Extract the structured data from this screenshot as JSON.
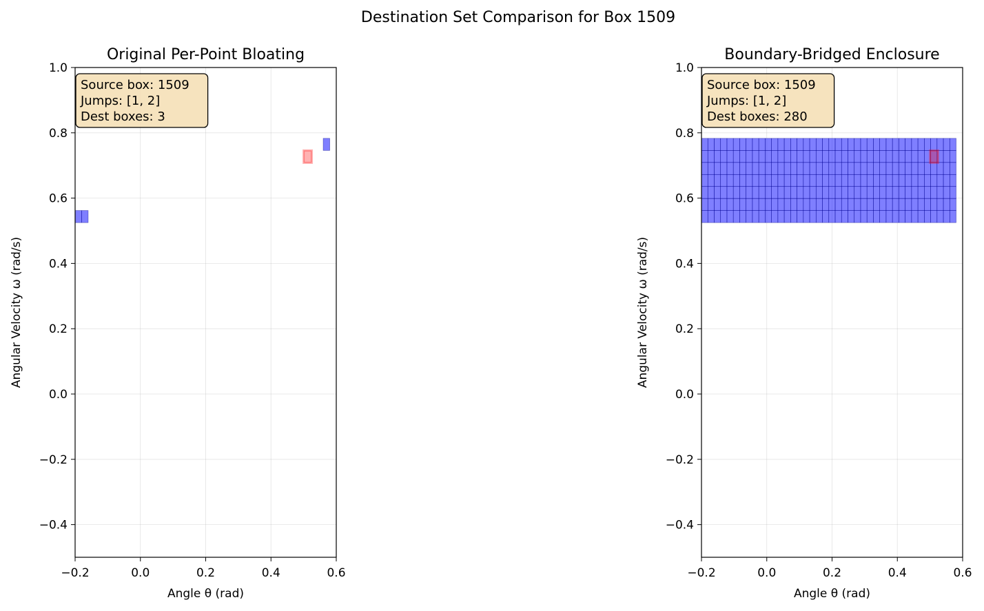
{
  "figure": {
    "suptitle": "Destination Set Comparison for Box 1509"
  },
  "colors": {
    "dest_fill": "#0000ff",
    "dest_edge": "#00008b",
    "source_fill": "#ff0000",
    "source_edge": "#ff0000",
    "info_bg": "#f5deb3",
    "grid": "#b0b0b0"
  },
  "chart_data": [
    {
      "type": "scatter",
      "title": "Original Per-Point Bloating",
      "xlabel": "Angle θ (rad)",
      "ylabel": "Angular Velocity ω (rad/s)",
      "xlim": [
        -0.2,
        0.6
      ],
      "ylim": [
        -0.5,
        1.0
      ],
      "xticks": [
        "−0.2",
        "0.0",
        "0.2",
        "0.4",
        "0.6"
      ],
      "yticks": [
        "−0.4",
        "−0.2",
        "0.0",
        "0.2",
        "0.4",
        "0.6",
        "0.8",
        "1.0"
      ],
      "grid": true,
      "info": [
        "Source box: 1509",
        "Jumps: [1, 2]",
        "Dest boxes: 3"
      ],
      "source_box": {
        "x0": 0.5,
        "x1": 0.525,
        "y0": 0.708,
        "y1": 0.746
      },
      "dest_boxes": [
        {
          "x0": -0.2,
          "x1": -0.18,
          "y0": 0.525,
          "y1": 0.562
        },
        {
          "x0": -0.18,
          "x1": -0.16,
          "y0": 0.525,
          "y1": 0.562
        },
        {
          "x0": 0.56,
          "x1": 0.58,
          "y0": 0.746,
          "y1": 0.783
        }
      ]
    },
    {
      "type": "scatter",
      "title": "Boundary-Bridged Enclosure",
      "xlabel": "Angle θ (rad)",
      "ylabel": "Angular Velocity ω (rad/s)",
      "xlim": [
        -0.2,
        0.6
      ],
      "ylim": [
        -0.5,
        1.0
      ],
      "xticks": [
        "−0.2",
        "0.0",
        "0.2",
        "0.4",
        "0.6"
      ],
      "yticks": [
        "−0.4",
        "−0.2",
        "0.0",
        "0.2",
        "0.4",
        "0.6",
        "0.8",
        "1.0"
      ],
      "grid": true,
      "info": [
        "Source box: 1509",
        "Jumps: [1, 2]",
        "Dest boxes: 280"
      ],
      "source_box": {
        "x0": 0.5,
        "x1": 0.525,
        "y0": 0.708,
        "y1": 0.746
      },
      "dest_region": {
        "x0": -0.2,
        "x1": 0.58,
        "y0": 0.525,
        "y1": 0.783,
        "cols": 40,
        "rows": 7
      }
    }
  ]
}
